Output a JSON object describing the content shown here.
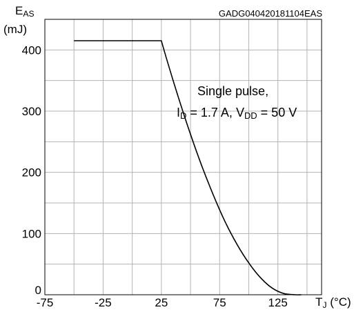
{
  "chart_data": {
    "type": "line",
    "code": "GADG040420181104EAS",
    "ylabel": {
      "main": "E",
      "sub": "AS",
      "unit": "(mJ)"
    },
    "xlabel": {
      "main": "T",
      "sub": "J",
      "unit": " (°C)"
    },
    "xlim": [
      -75,
      162.5
    ],
    "ylim": [
      0,
      450
    ],
    "x_gridlines": [
      -75,
      -50,
      -25,
      0,
      25,
      50,
      75,
      100,
      125,
      150
    ],
    "y_gridlines": [
      0,
      50,
      100,
      150,
      200,
      250,
      300,
      350,
      400
    ],
    "x_ticks": [
      -75,
      -25,
      25,
      75,
      125
    ],
    "y_ticks": [
      0,
      100,
      200,
      300,
      400
    ],
    "grid": true,
    "annotation": {
      "line1": "Single pulse,",
      "id_main": "I",
      "id_sub": "D",
      "id_rest": " = 1.7 A, ",
      "vdd_main": "V",
      "vdd_sub": "DD",
      "vdd_rest": " = 50 V"
    },
    "series": [
      {
        "x": [
          -50,
          25,
          30,
          40,
          50,
          60,
          70,
          80,
          90,
          100,
          110,
          120,
          130,
          140,
          145
        ],
        "y": [
          415,
          415,
          382,
          320,
          262,
          209,
          161,
          118,
          82,
          52,
          28,
          11,
          2,
          0,
          0
        ]
      }
    ]
  }
}
